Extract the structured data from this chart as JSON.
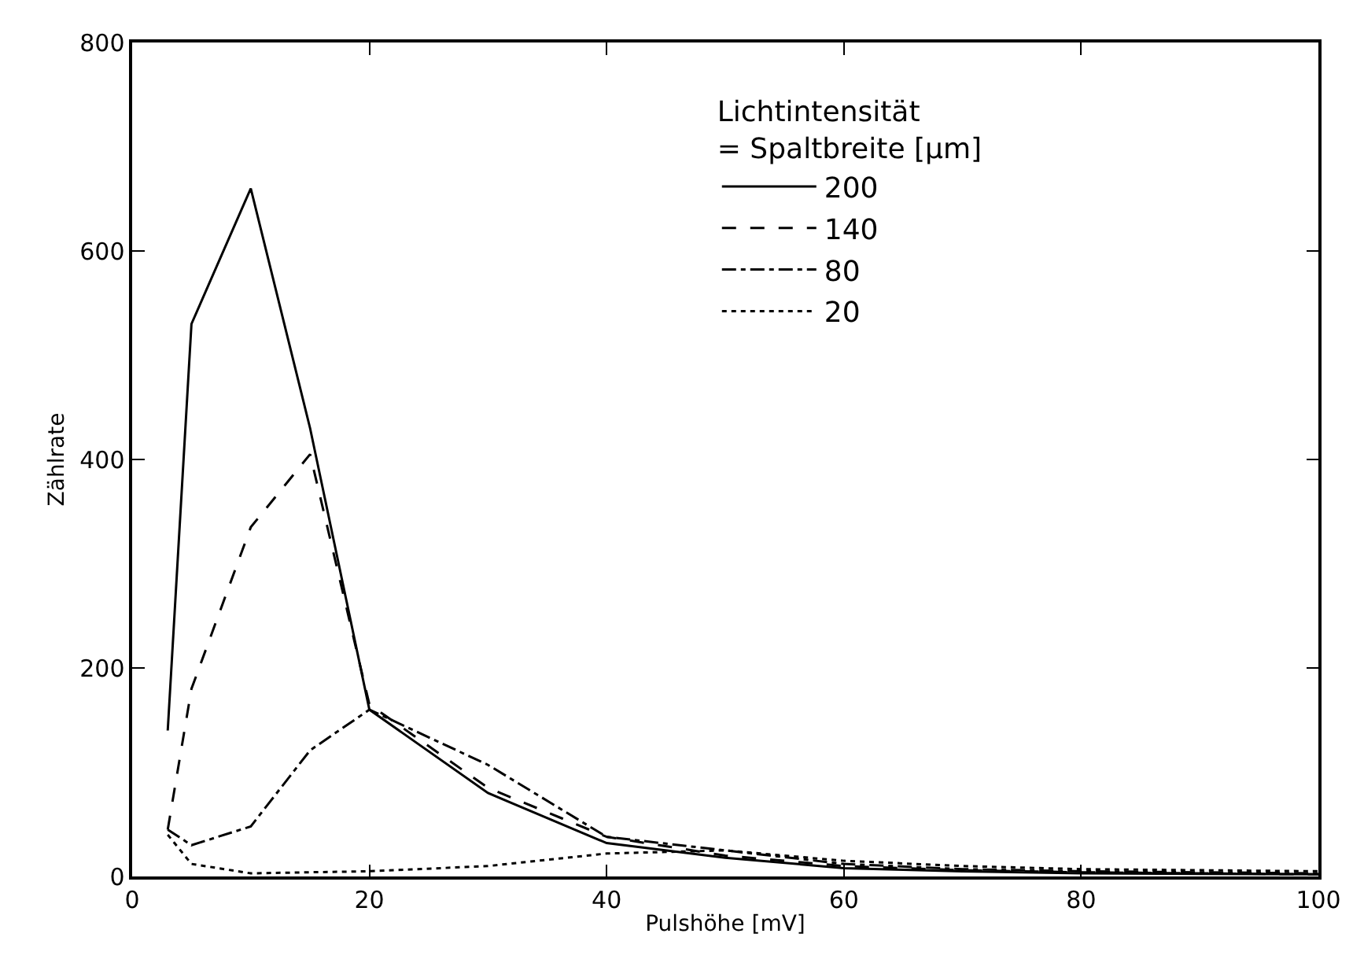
{
  "chart_data": {
    "type": "line",
    "xlabel": "Pulshöhe [mV]",
    "ylabel": "Zählrate",
    "legend_title": "Lichtintensität\n= Spaltbreite [μm]",
    "xlim": [
      0,
      100
    ],
    "xticks": [
      0,
      20,
      40,
      60,
      80,
      100
    ],
    "ylim": [
      0,
      800
    ],
    "yticks": [
      0,
      200,
      400,
      600,
      800
    ],
    "grid": false,
    "legend": "top right",
    "marker": "none",
    "series": [
      {
        "name": "200",
        "color": "#000000",
        "line_style": "solid",
        "x": [
          3,
          5,
          10,
          15,
          20,
          30,
          40,
          50,
          60,
          70,
          80,
          100
        ],
        "values": [
          140,
          530,
          660,
          430,
          160,
          80,
          32,
          18,
          8,
          5,
          3,
          2
        ]
      },
      {
        "name": "140",
        "color": "#000000",
        "line_style": "dashed",
        "x": [
          3,
          5,
          10,
          15,
          20,
          30,
          40,
          50,
          60,
          70,
          80,
          100
        ],
        "values": [
          45,
          180,
          335,
          405,
          165,
          85,
          38,
          20,
          10,
          6,
          4,
          2
        ]
      },
      {
        "name": "80",
        "color": "#000000",
        "line_style": "dashdot",
        "x": [
          3,
          5,
          10,
          15,
          20,
          30,
          40,
          50,
          60,
          70,
          80,
          100
        ],
        "values": [
          45,
          30,
          48,
          121,
          160,
          107,
          38,
          25,
          12,
          7,
          5,
          3
        ]
      },
      {
        "name": "20",
        "color": "#000000",
        "line_style": "dotted",
        "x": [
          3,
          5,
          10,
          20,
          30,
          40,
          50,
          60,
          70,
          80,
          100
        ],
        "values": [
          40,
          12,
          3,
          5,
          10,
          22,
          25,
          15,
          10,
          7,
          5
        ]
      }
    ]
  }
}
